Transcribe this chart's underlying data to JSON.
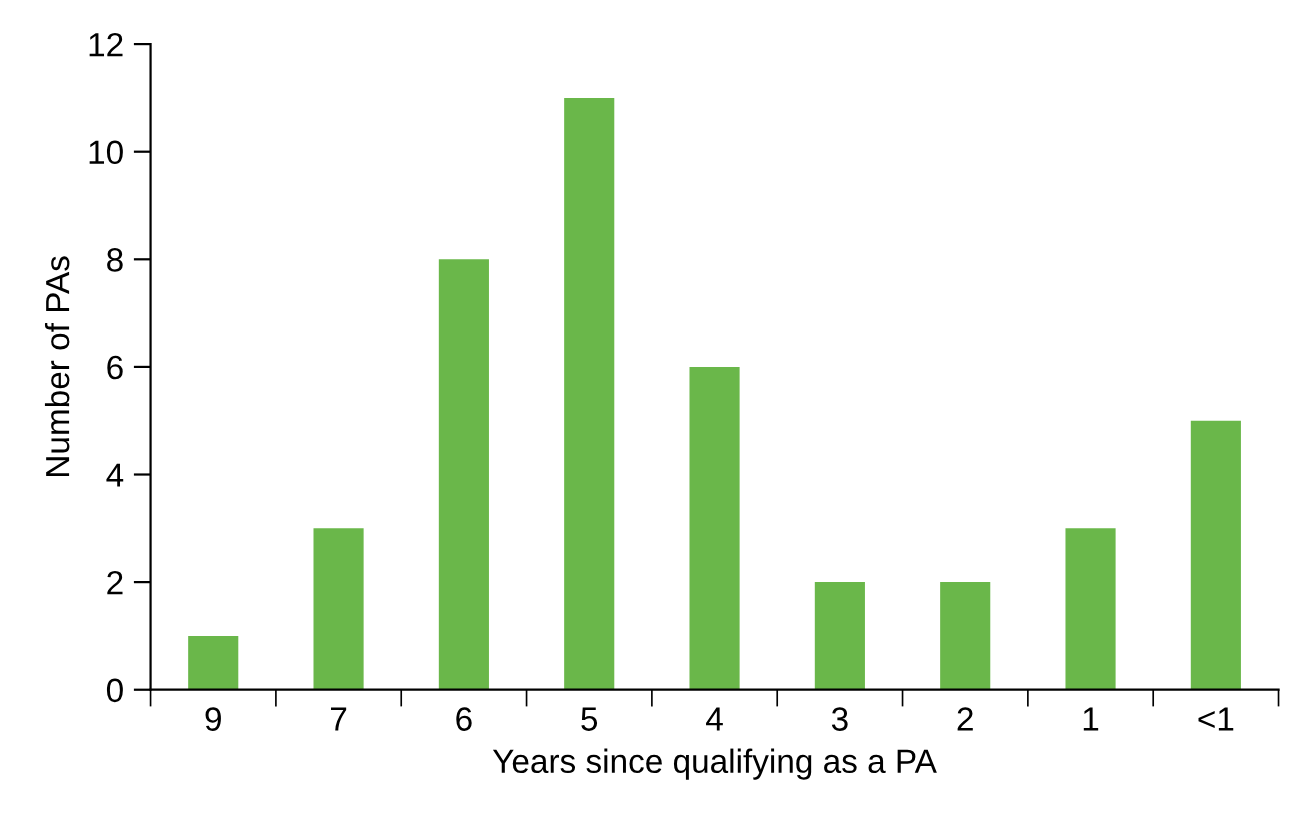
{
  "chart_data": {
    "type": "bar",
    "xlabel": "Years since qualifying as a PA",
    "ylabel": "Number of PAs",
    "categories": [
      "9",
      "7",
      "6",
      "5",
      "4",
      "3",
      "2",
      "1",
      "<1"
    ],
    "values": [
      1,
      3,
      8,
      11,
      6,
      2,
      2,
      3,
      5
    ],
    "color": "#6ab74a",
    "ylim": [
      0,
      12
    ],
    "yticks": [
      0,
      2,
      4,
      6,
      8,
      10,
      12
    ],
    "grid": false,
    "legend": false
  }
}
